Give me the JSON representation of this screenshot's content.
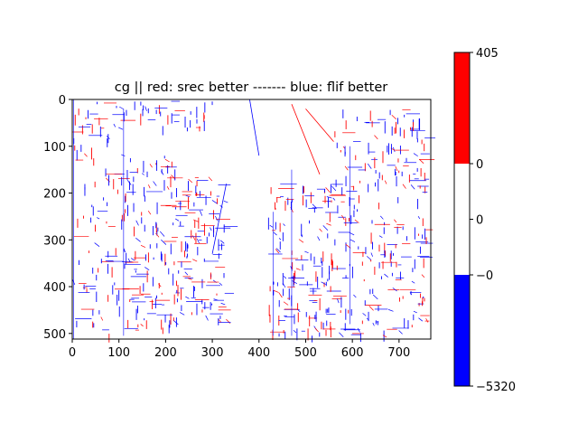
{
  "chart_data": {
    "type": "heatmap",
    "title": "cg || red: srec better ------- blue: flif better",
    "xlabel": "",
    "ylabel": "",
    "image_size": {
      "width": 768,
      "height": 512
    },
    "xlim": [
      0,
      768
    ],
    "ylim": [
      512,
      0
    ],
    "x_ticks": [
      0,
      100,
      200,
      300,
      400,
      500,
      600,
      700
    ],
    "y_ticks": [
      0,
      100,
      200,
      300,
      400,
      500
    ],
    "colors": {
      "positive": "#ff0000",
      "negative": "#0000ff",
      "neutral": "#ffffff"
    },
    "colorbar": {
      "range": [
        -5320,
        405
      ],
      "segments": [
        {
          "from": 0,
          "to": 405,
          "color": "#ff0000"
        },
        {
          "from": 0,
          "to": 0,
          "color": "#ffffff"
        },
        {
          "from": -5320,
          "to": 0,
          "color": "#0000ff"
        }
      ],
      "tick_labels": [
        "405",
        "0",
        "0",
        "−0",
        "−5320"
      ]
    }
  }
}
